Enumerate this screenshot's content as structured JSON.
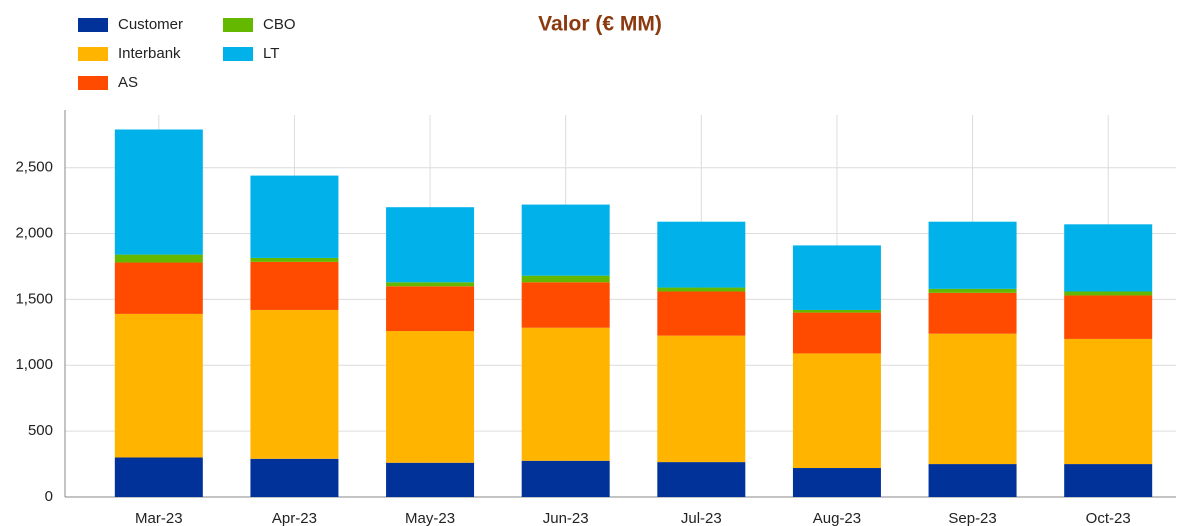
{
  "chart_data": {
    "type": "stacked_bar",
    "title": "Valor (€ MM)",
    "categories": [
      "Mar-23",
      "Apr-23",
      "May-23",
      "Jun-23",
      "Jul-23",
      "Aug-23",
      "Sep-23",
      "Oct-23"
    ],
    "series": [
      {
        "name": "Customer",
        "color": "#003299",
        "values": [
          300,
          290,
          260,
          275,
          265,
          220,
          250,
          250
        ]
      },
      {
        "name": "Interbank",
        "color": "#ffb400",
        "values": [
          1090,
          1130,
          1000,
          1010,
          960,
          870,
          990,
          950
        ]
      },
      {
        "name": "AS",
        "color": "#ff4b00",
        "values": [
          390,
          365,
          340,
          345,
          335,
          310,
          310,
          330
        ]
      },
      {
        "name": "CBO",
        "color": "#65b800",
        "values": [
          60,
          30,
          30,
          50,
          30,
          20,
          30,
          30
        ]
      },
      {
        "name": "LT",
        "color": "#00b1ea",
        "values": [
          950,
          625,
          570,
          540,
          500,
          490,
          510,
          510
        ]
      }
    ],
    "ylim": [
      0,
      2900
    ],
    "yticks": [
      0,
      500,
      {
        "value": 1000,
        "label": "1,000"
      },
      {
        "value": 1500,
        "label": "1,500"
      },
      {
        "value": 2000,
        "label": "2,000"
      },
      {
        "value": 2500,
        "label": "2,500"
      }
    ],
    "grid": true,
    "legend": "top-left"
  }
}
